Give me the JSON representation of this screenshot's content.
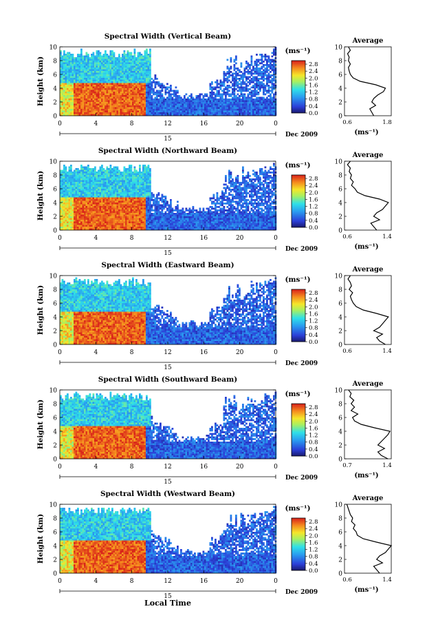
{
  "chart_data": {
    "type": "heatmap",
    "figure_xlabel": "Local Time",
    "panels": [
      {
        "title": "Spectral Width (Vertical Beam)",
        "ylabel": "Height (km)",
        "ylim": [
          0,
          10
        ],
        "yticks": [
          "0",
          "2",
          "4",
          "6",
          "8",
          "10"
        ],
        "xticks": [
          "0",
          "4",
          "8",
          "12",
          "16",
          "20",
          "0"
        ],
        "xlim": [
          0,
          24
        ],
        "date_mark": "15",
        "date_label": "Dec 2009",
        "colorbar": {
          "unit": "(ms⁻¹)",
          "ticks": [
            "0.0",
            "0.4",
            "0.8",
            "1.2",
            "1.6",
            "2.0",
            "2.4",
            "2.8"
          ],
          "range": [
            0.0,
            3.0
          ]
        },
        "profile": {
          "title": "Average",
          "xlabel": "(ms⁻¹)",
          "xticks": [
            "0.6",
            "1.8"
          ],
          "xlim": [
            0.6,
            1.8
          ],
          "yticks": [
            "0",
            "2",
            "4",
            "6",
            "8",
            "10"
          ],
          "heights": [
            0,
            0.5,
            1,
            1.5,
            2,
            2.5,
            3,
            3.5,
            4,
            4.5,
            5,
            5.5,
            6,
            6.5,
            7,
            7.5,
            8,
            8.5,
            9,
            9.5,
            10
          ],
          "values": [
            1.35,
            1.3,
            1.25,
            1.4,
            1.3,
            1.35,
            1.45,
            1.6,
            1.65,
            1.4,
            1.0,
            0.82,
            0.75,
            0.72,
            0.7,
            0.75,
            0.7,
            0.72,
            0.68,
            0.75,
            0.7
          ]
        }
      },
      {
        "title": "Spectral Width (Northward Beam)",
        "ylabel": "Height (km)",
        "ylim": [
          0,
          10
        ],
        "yticks": [
          "0",
          "2",
          "4",
          "6",
          "8",
          "10"
        ],
        "xticks": [
          "0",
          "4",
          "8",
          "12",
          "16",
          "20",
          "0"
        ],
        "xlim": [
          0,
          24
        ],
        "date_mark": "15",
        "date_label": "Dec 2009",
        "colorbar": {
          "unit": "(ms⁻¹)",
          "ticks": [
            "0.0",
            "0.4",
            "0.8",
            "1.2",
            "1.6",
            "2.0",
            "2.4",
            "2.8"
          ],
          "range": [
            0.0,
            3.0
          ]
        },
        "profile": {
          "title": "Average",
          "xlabel": "(ms⁻¹)",
          "xticks": [
            "0.6",
            "1.4"
          ],
          "xlim": [
            0.6,
            1.4
          ],
          "yticks": [
            "0",
            "2",
            "4",
            "6",
            "8",
            "10"
          ],
          "heights": [
            0,
            0.5,
            1,
            1.5,
            2,
            2.5,
            3,
            3.5,
            4,
            4.5,
            5,
            5.5,
            6,
            6.5,
            7,
            7.5,
            8,
            8.5,
            9,
            9.5,
            10
          ],
          "values": [
            1.15,
            1.1,
            1.05,
            1.2,
            1.1,
            1.15,
            1.25,
            1.3,
            1.35,
            1.2,
            0.95,
            0.82,
            0.78,
            0.72,
            0.75,
            0.7,
            0.72,
            0.68,
            0.7,
            0.65,
            0.7
          ]
        }
      },
      {
        "title": "Spectral Width (Eastward Beam)",
        "ylabel": "Height (km)",
        "ylim": [
          0,
          10
        ],
        "yticks": [
          "0",
          "2",
          "4",
          "6",
          "8",
          "10"
        ],
        "xticks": [
          "0",
          "4",
          "8",
          "12",
          "16",
          "20",
          "0"
        ],
        "xlim": [
          0,
          24
        ],
        "date_mark": "15",
        "date_label": "Dec 2009",
        "colorbar": {
          "unit": "(ms⁻¹)",
          "ticks": [
            "0.0",
            "0.4",
            "0.8",
            "1.2",
            "1.6",
            "2.0",
            "2.4",
            "2.8"
          ],
          "range": [
            0.0,
            3.0
          ]
        },
        "profile": {
          "title": "Average",
          "xlabel": "",
          "xticks": [
            "0.6",
            "1.4"
          ],
          "xlim": [
            0.6,
            1.4
          ],
          "yticks": [
            "0",
            "2",
            "4",
            "6",
            "8",
            "10"
          ],
          "heights": [
            0,
            0.5,
            1,
            1.5,
            2,
            2.5,
            3,
            3.5,
            4,
            4.5,
            5,
            5.5,
            6,
            6.5,
            7,
            7.5,
            8,
            8.5,
            9,
            9.5,
            10
          ],
          "values": [
            1.3,
            1.2,
            1.15,
            1.25,
            1.1,
            1.2,
            1.25,
            1.3,
            1.35,
            1.15,
            0.92,
            0.8,
            0.75,
            0.72,
            0.7,
            0.74,
            0.68,
            0.72,
            0.7,
            0.66,
            0.7
          ]
        }
      },
      {
        "title": "Spectral Width (Southward Beam)",
        "ylabel": "Height (km)",
        "ylim": [
          0,
          10
        ],
        "yticks": [
          "0",
          "2",
          "4",
          "6",
          "8",
          "10"
        ],
        "xticks": [
          "0",
          "4",
          "8",
          "12",
          "16",
          "20",
          "0"
        ],
        "xlim": [
          0,
          24
        ],
        "date_mark": "15",
        "date_label": "Dec 2009",
        "colorbar": {
          "unit": "(ms⁻¹)",
          "ticks": [
            "0.0",
            "0.4",
            "0.8",
            "1.2",
            "1.6",
            "2.0",
            "2.4",
            "2.8"
          ],
          "range": [
            0.0,
            3.0
          ]
        },
        "profile": {
          "title": "Average",
          "xlabel": "(ms⁻¹)",
          "xticks": [
            "0.7",
            "1.4"
          ],
          "xlim": [
            0.7,
            1.4
          ],
          "yticks": [
            "0",
            "2",
            "4",
            "6",
            "8",
            "10"
          ],
          "heights": [
            0,
            0.5,
            1,
            1.5,
            2,
            2.5,
            3,
            3.5,
            4,
            4.5,
            5,
            5.5,
            6,
            6.5,
            7,
            7.5,
            8,
            8.5,
            9,
            9.5,
            10
          ],
          "values": [
            1.35,
            1.25,
            1.2,
            1.3,
            1.2,
            1.25,
            1.3,
            1.35,
            1.38,
            1.15,
            0.95,
            0.85,
            0.82,
            0.9,
            0.8,
            0.85,
            0.8,
            0.84,
            0.78,
            0.8,
            0.76
          ]
        }
      },
      {
        "title": "Spectral Width (Westward Beam)",
        "ylabel": "Height (km)",
        "ylim": [
          0,
          10
        ],
        "yticks": [
          "0",
          "2",
          "4",
          "6",
          "8",
          "10"
        ],
        "xticks": [
          "0",
          "4",
          "8",
          "12",
          "16",
          "20",
          "0"
        ],
        "xlim": [
          0,
          24
        ],
        "date_mark": "15",
        "date_label": "Dec 2009",
        "colorbar": {
          "unit": "(ms⁻¹)",
          "ticks": [
            "0.0",
            "0.4",
            "0.8",
            "1.2",
            "1.6",
            "2.0",
            "2.4",
            "2.8"
          ],
          "range": [
            0.0,
            3.0
          ]
        },
        "profile": {
          "title": "Average",
          "xlabel": "(ms⁻¹)",
          "xticks": [
            "0.6",
            "1.4"
          ],
          "xlim": [
            0.6,
            1.4
          ],
          "yticks": [
            "0",
            "2",
            "4",
            "6",
            "8",
            "10"
          ],
          "heights": [
            0,
            0.5,
            1,
            1.5,
            2,
            2.5,
            3,
            3.5,
            4,
            4.5,
            5,
            5.5,
            6,
            6.5,
            7,
            7.5,
            8,
            8.5,
            9,
            9.5,
            10
          ],
          "values": [
            1.2,
            1.15,
            1.1,
            1.25,
            1.15,
            1.2,
            1.3,
            1.35,
            1.4,
            1.15,
            0.92,
            0.82,
            0.8,
            0.75,
            0.78,
            0.72,
            0.74,
            0.7,
            0.68,
            0.66,
            0.64
          ]
        }
      }
    ]
  }
}
